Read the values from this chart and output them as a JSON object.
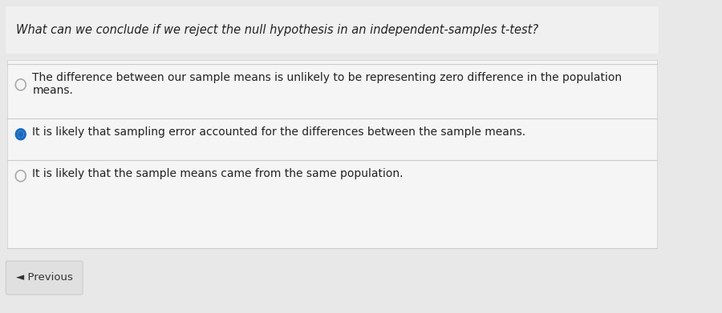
{
  "background_color": "#e8e8e8",
  "question_box_color": "#f0f0f0",
  "answer_box_color": "#f5f5f5",
  "question_text": "What can we conclude if we reject the null hypothesis in an independent-samples t-test?",
  "options": [
    "The difference between our sample means is unlikely to be representing zero difference in the population\nmeans.",
    "It is likely that sampling error accounted for the differences between the sample means.",
    "It is likely that the sample means came from the same population."
  ],
  "selected_index": 1,
  "prev_button_text": "◄ Previous",
  "question_font_size": 10.5,
  "option_font_size": 10.0,
  "button_font_size": 9.5,
  "text_color": "#222222",
  "radio_unselected_color": "#aaaaaa",
  "radio_selected_color": "#1a6bbf",
  "line_color": "#cccccc",
  "button_box_color": "#e0e0e0",
  "button_text_color": "#333333"
}
